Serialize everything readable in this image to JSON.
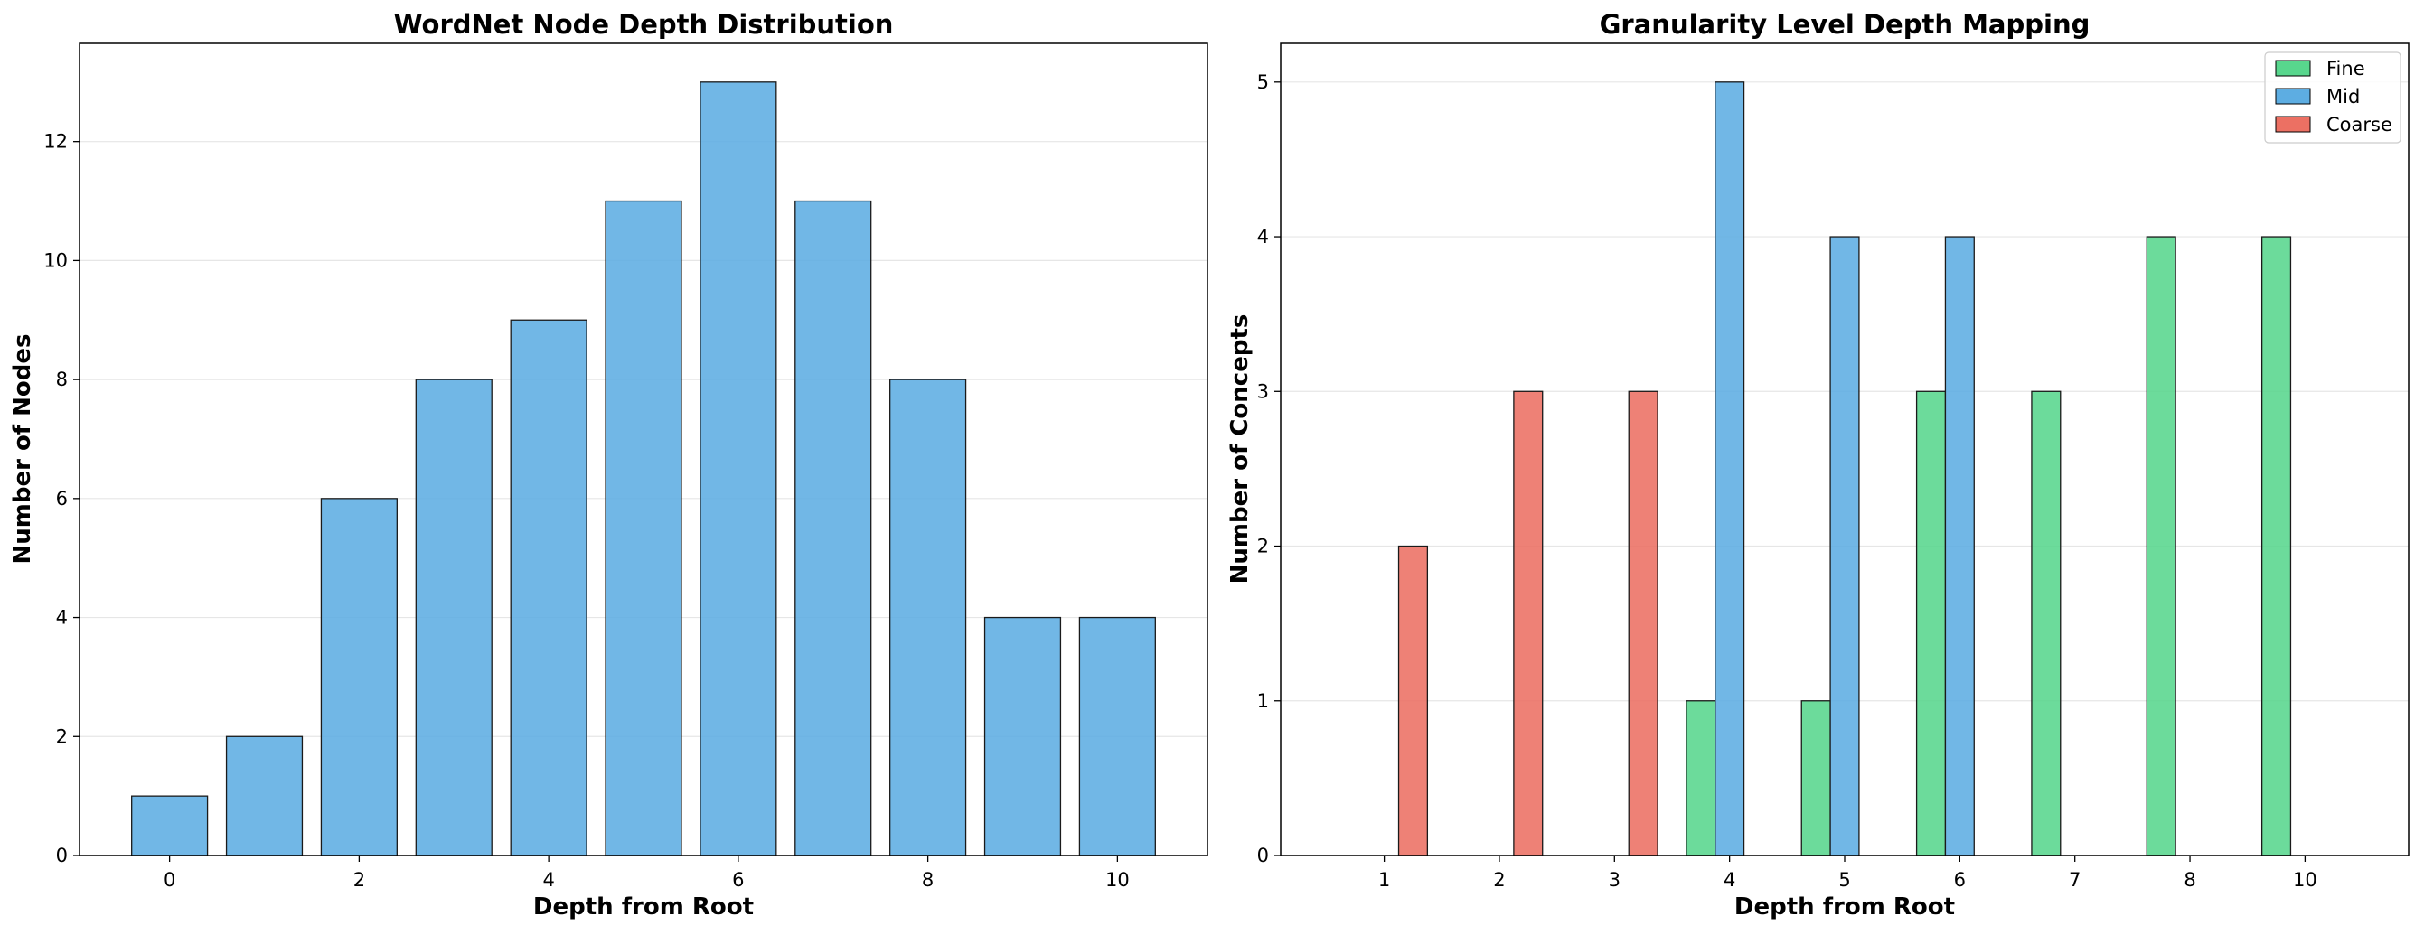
{
  "chart_data": [
    {
      "type": "bar",
      "title": "WordNet Node Depth Distribution",
      "xlabel": "Depth from Root",
      "ylabel": "Number of Nodes",
      "x": [
        0,
        1,
        2,
        3,
        4,
        5,
        6,
        7,
        8,
        9,
        10
      ],
      "values": [
        1,
        2,
        6,
        8,
        9,
        11,
        13,
        11,
        8,
        4,
        4
      ],
      "xticks": [
        "0",
        "2",
        "4",
        "6",
        "8",
        "10"
      ],
      "yticks": [
        "0",
        "2",
        "4",
        "6",
        "8",
        "10",
        "12"
      ],
      "xlim": [
        -0.95,
        10.95
      ],
      "ylim": [
        0,
        13.65
      ],
      "grid": "y",
      "bar_color": "#5DADE2"
    },
    {
      "type": "bar",
      "title": "Granularity Level Depth Mapping",
      "xlabel": "Depth from Root",
      "ylabel": "Number of Concepts",
      "x": [
        1,
        2,
        3,
        4,
        5,
        6,
        7,
        8,
        10
      ],
      "series": [
        {
          "name": "Fine",
          "color": "#58D68D",
          "values": [
            0,
            0,
            0,
            1,
            1,
            3,
            3,
            4,
            4
          ]
        },
        {
          "name": "Mid",
          "color": "#5DADE2",
          "values": [
            0,
            0,
            0,
            5,
            4,
            4,
            0,
            0,
            0
          ]
        },
        {
          "name": "Coarse",
          "color": "#EC7063",
          "values": [
            2,
            3,
            3,
            0,
            0,
            0,
            0,
            0,
            0
          ]
        }
      ],
      "xticks": [
        "1",
        "2",
        "3",
        "4",
        "5",
        "6",
        "7",
        "8",
        "10"
      ],
      "yticks": [
        "0",
        "1",
        "2",
        "3",
        "4",
        "5"
      ],
      "ylim": [
        0,
        5.25
      ],
      "grid": "y",
      "legend": "top-right"
    }
  ]
}
